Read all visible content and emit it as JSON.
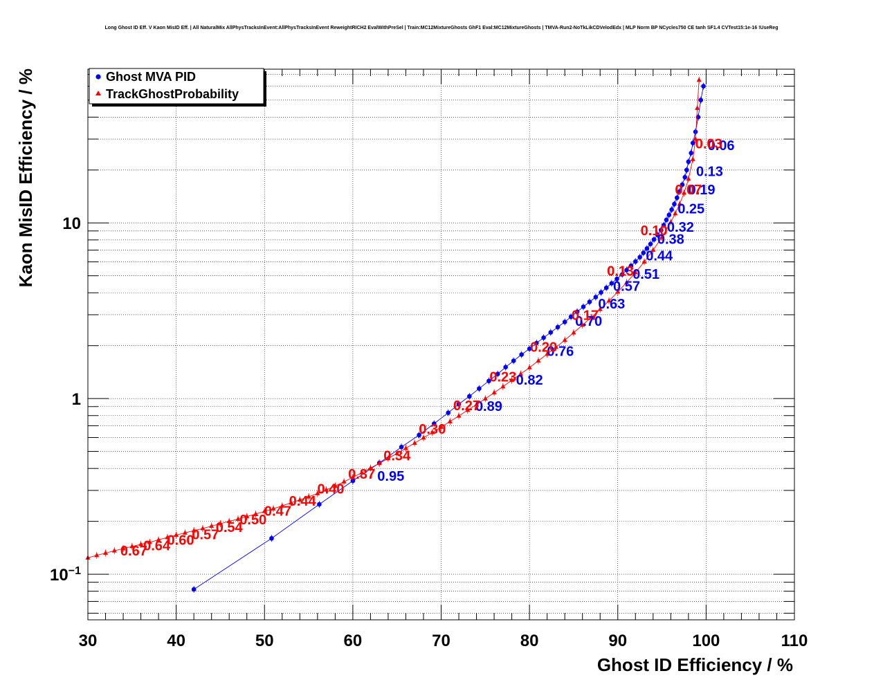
{
  "chart_data": {
    "type": "scatter",
    "title": "Long Ghost ID Eff. V Kaon MisID Eff. | All NaturalMix AllPhysTracksInEvent:AllPhysTracksInEvent ReweightRICH2 EvalWithPreSel | Train:MC12MixtureGhosts GhF1 Eval:MC12MixtureGhosts | TMVA-Run2-NoTkLikCDVelodEdx | MLP Norm BP NCycles750 CE tanh SF1.4 CVTest15:1e-16 !UseReg",
    "xlabel": "Ghost ID Efficiency / %",
    "ylabel": "Kaon MisID Efficiency / %",
    "xlim": [
      30,
      110
    ],
    "ylim": [
      0.055,
      75
    ],
    "yscale": "log",
    "grid": true,
    "legend_position": "top-left",
    "x_ticks": [
      "30",
      "40",
      "50",
      "60",
      "70",
      "80",
      "90",
      "100",
      "110"
    ],
    "y_ticks": [
      {
        "value": 0.1,
        "base": "10",
        "exp": "−1"
      },
      {
        "value": 1,
        "base": "1",
        "exp": ""
      },
      {
        "value": 10,
        "base": "10",
        "exp": ""
      }
    ],
    "series": [
      {
        "name": "Ghost MVA PID",
        "color": "#0000ff",
        "marker": "circle",
        "points": [
          [
            42.0,
            0.082
          ],
          [
            50.8,
            0.16
          ],
          [
            56.2,
            0.25
          ],
          [
            60.0,
            0.34
          ],
          [
            63.0,
            0.43
          ],
          [
            65.5,
            0.53
          ],
          [
            67.5,
            0.62
          ],
          [
            69.2,
            0.72
          ],
          [
            70.8,
            0.83
          ],
          [
            72.0,
            0.93
          ],
          [
            73.2,
            1.03
          ],
          [
            74.3,
            1.14
          ],
          [
            75.4,
            1.26
          ],
          [
            76.4,
            1.38
          ],
          [
            77.3,
            1.51
          ],
          [
            78.2,
            1.64
          ],
          [
            79.1,
            1.78
          ],
          [
            80.0,
            1.92
          ],
          [
            80.8,
            2.07
          ],
          [
            81.6,
            2.22
          ],
          [
            82.4,
            2.38
          ],
          [
            83.2,
            2.55
          ],
          [
            84.0,
            2.73
          ],
          [
            84.7,
            2.92
          ],
          [
            85.4,
            3.12
          ],
          [
            86.1,
            3.33
          ],
          [
            86.8,
            3.55
          ],
          [
            87.5,
            3.78
          ],
          [
            88.1,
            4.02
          ],
          [
            88.7,
            4.27
          ],
          [
            89.3,
            4.53
          ],
          [
            89.9,
            4.8
          ],
          [
            90.5,
            5.09
          ],
          [
            91.0,
            5.39
          ],
          [
            91.5,
            5.7
          ],
          [
            92.0,
            6.03
          ],
          [
            92.5,
            6.38
          ],
          [
            92.9,
            6.75
          ],
          [
            93.3,
            7.15
          ],
          [
            93.7,
            7.58
          ],
          [
            94.1,
            8.05
          ],
          [
            94.5,
            8.55
          ],
          [
            94.9,
            9.1
          ],
          [
            95.2,
            9.7
          ],
          [
            95.5,
            10.4
          ],
          [
            95.8,
            11.1
          ],
          [
            96.1,
            11.9
          ],
          [
            96.4,
            12.8
          ],
          [
            96.7,
            13.9
          ],
          [
            97.0,
            15.1
          ],
          [
            97.3,
            16.5
          ],
          [
            97.6,
            18.2
          ],
          [
            97.8,
            20.0
          ],
          [
            98.0,
            22.3
          ],
          [
            98.3,
            25.0
          ],
          [
            98.5,
            28.5
          ],
          [
            98.8,
            33.0
          ],
          [
            99.1,
            40.0
          ],
          [
            99.4,
            50.0
          ],
          [
            99.7,
            60.0
          ]
        ]
      },
      {
        "name": "TrackGhostProbability",
        "color": "#ff0000",
        "marker": "triangle",
        "points": [
          [
            30.0,
            0.124
          ],
          [
            31.0,
            0.128
          ],
          [
            32.0,
            0.132
          ],
          [
            33.0,
            0.136
          ],
          [
            34.0,
            0.14
          ],
          [
            35.0,
            0.144
          ],
          [
            36.0,
            0.148
          ],
          [
            37.0,
            0.152
          ],
          [
            38.0,
            0.157
          ],
          [
            39.0,
            0.162
          ],
          [
            40.0,
            0.167
          ],
          [
            41.0,
            0.172
          ],
          [
            42.0,
            0.177
          ],
          [
            43.0,
            0.182
          ],
          [
            44.0,
            0.188
          ],
          [
            45.0,
            0.194
          ],
          [
            46.0,
            0.2
          ],
          [
            47.0,
            0.206
          ],
          [
            48.0,
            0.213
          ],
          [
            49.0,
            0.22
          ],
          [
            50.0,
            0.228
          ],
          [
            51.0,
            0.236
          ],
          [
            52.0,
            0.245
          ],
          [
            53.0,
            0.255
          ],
          [
            54.0,
            0.265
          ],
          [
            55.0,
            0.276
          ],
          [
            56.0,
            0.288
          ],
          [
            57.0,
            0.302
          ],
          [
            58.0,
            0.318
          ],
          [
            59.0,
            0.336
          ],
          [
            60.0,
            0.356
          ],
          [
            61.0,
            0.378
          ],
          [
            62.0,
            0.402
          ],
          [
            63.0,
            0.428
          ],
          [
            64.0,
            0.456
          ],
          [
            65.0,
            0.487
          ],
          [
            66.0,
            0.521
          ],
          [
            67.0,
            0.558
          ],
          [
            68.0,
            0.598
          ],
          [
            69.0,
            0.641
          ],
          [
            70.0,
            0.688
          ],
          [
            71.0,
            0.74
          ],
          [
            72.0,
            0.796
          ],
          [
            73.0,
            0.858
          ],
          [
            74.0,
            0.925
          ],
          [
            75.0,
            0.998
          ],
          [
            76.0,
            1.08
          ],
          [
            77.0,
            1.17
          ],
          [
            78.0,
            1.27
          ],
          [
            79.0,
            1.38
          ],
          [
            80.0,
            1.5
          ],
          [
            81.0,
            1.64
          ],
          [
            82.0,
            1.79
          ],
          [
            83.0,
            1.96
          ],
          [
            84.0,
            2.15
          ],
          [
            85.0,
            2.37
          ],
          [
            86.0,
            2.62
          ],
          [
            87.0,
            2.9
          ],
          [
            88.0,
            3.22
          ],
          [
            89.0,
            3.6
          ],
          [
            90.0,
            4.05
          ],
          [
            91.0,
            4.58
          ],
          [
            92.0,
            5.22
          ],
          [
            93.0,
            6.0
          ],
          [
            94.0,
            7.0
          ],
          [
            95.0,
            8.3
          ],
          [
            96.0,
            10.1
          ],
          [
            96.5,
            11.3
          ],
          [
            97.0,
            12.8
          ],
          [
            97.5,
            14.8
          ],
          [
            98.0,
            17.8
          ],
          [
            98.5,
            23.0
          ],
          [
            98.8,
            30.0
          ],
          [
            99.0,
            45.0
          ],
          [
            99.2,
            65.0
          ]
        ]
      }
    ],
    "cut_labels": [
      {
        "series": "Ghost MVA PID",
        "color": "#0000ff",
        "text": "0.95",
        "x": 64.3,
        "y": 0.34
      },
      {
        "series": "Ghost MVA PID",
        "color": "#0000ff",
        "text": "0.89",
        "x": 75.4,
        "y": 0.85
      },
      {
        "series": "Ghost MVA PID",
        "color": "#0000ff",
        "text": "0.82",
        "x": 80.0,
        "y": 1.2
      },
      {
        "series": "Ghost MVA PID",
        "color": "#0000ff",
        "text": "0.76",
        "x": 83.5,
        "y": 1.75
      },
      {
        "series": "Ghost MVA PID",
        "color": "#0000ff",
        "text": "0.70",
        "x": 86.7,
        "y": 2.6
      },
      {
        "series": "Ghost MVA PID",
        "color": "#0000ff",
        "text": "0.63",
        "x": 89.3,
        "y": 3.25
      },
      {
        "series": "Ghost MVA PID",
        "color": "#0000ff",
        "text": "0.57",
        "x": 91.0,
        "y": 4.1
      },
      {
        "series": "Ghost MVA PID",
        "color": "#0000ff",
        "text": "0.51",
        "x": 93.2,
        "y": 4.8
      },
      {
        "series": "Ghost MVA PID",
        "color": "#0000ff",
        "text": "0.44",
        "x": 94.7,
        "y": 6.1
      },
      {
        "series": "Ghost MVA PID",
        "color": "#0000ff",
        "text": "0.38",
        "x": 96.0,
        "y": 7.6
      },
      {
        "series": "Ghost MVA PID",
        "color": "#0000ff",
        "text": "0.32",
        "x": 97.1,
        "y": 8.9
      },
      {
        "series": "Ghost MVA PID",
        "color": "#0000ff",
        "text": "0.25",
        "x": 98.3,
        "y": 11.3
      },
      {
        "series": "Ghost MVA PID",
        "color": "#0000ff",
        "text": "0.19",
        "x": 99.5,
        "y": 14.5
      },
      {
        "series": "Ghost MVA PID",
        "color": "#0000ff",
        "text": "0.13",
        "x": 100.4,
        "y": 18.5
      },
      {
        "series": "Ghost MVA PID",
        "color": "#0000ff",
        "text": "0.06",
        "x": 101.7,
        "y": 26.0
      },
      {
        "series": "TrackGhostProbability",
        "color": "#ff0000",
        "text": "0.03",
        "x": 100.3,
        "y": 26.5
      },
      {
        "series": "TrackGhostProbability",
        "color": "#ff0000",
        "text": "0.07",
        "x": 98.0,
        "y": 14.5
      },
      {
        "series": "TrackGhostProbability",
        "color": "#ff0000",
        "text": "0.10",
        "x": 94.1,
        "y": 8.5
      },
      {
        "series": "TrackGhostProbability",
        "color": "#ff0000",
        "text": "0.13",
        "x": 90.3,
        "y": 5.0
      },
      {
        "series": "TrackGhostProbability",
        "color": "#ff0000",
        "text": "0.17",
        "x": 86.3,
        "y": 2.8
      },
      {
        "series": "TrackGhostProbability",
        "color": "#ff0000",
        "text": "0.20",
        "x": 81.6,
        "y": 1.85
      },
      {
        "series": "TrackGhostProbability",
        "color": "#ff0000",
        "text": "0.23",
        "x": 77.0,
        "y": 1.25
      },
      {
        "series": "TrackGhostProbability",
        "color": "#ff0000",
        "text": "0.27",
        "x": 72.9,
        "y": 0.86
      },
      {
        "series": "TrackGhostProbability",
        "color": "#ff0000",
        "text": "0.30",
        "x": 69.0,
        "y": 0.63
      },
      {
        "series": "TrackGhostProbability",
        "color": "#ff0000",
        "text": "0.34",
        "x": 65.0,
        "y": 0.445
      },
      {
        "series": "TrackGhostProbability",
        "color": "#ff0000",
        "text": "0.37",
        "x": 61.0,
        "y": 0.35
      },
      {
        "series": "TrackGhostProbability",
        "color": "#ff0000",
        "text": "0.40",
        "x": 57.5,
        "y": 0.288
      },
      {
        "series": "TrackGhostProbability",
        "color": "#ff0000",
        "text": "0.44",
        "x": 54.3,
        "y": 0.245
      },
      {
        "series": "TrackGhostProbability",
        "color": "#ff0000",
        "text": "0.47",
        "x": 51.5,
        "y": 0.215
      },
      {
        "series": "TrackGhostProbability",
        "color": "#ff0000",
        "text": "0.50",
        "x": 48.7,
        "y": 0.192
      },
      {
        "series": "TrackGhostProbability",
        "color": "#ff0000",
        "text": "0.54",
        "x": 46.0,
        "y": 0.174
      },
      {
        "series": "TrackGhostProbability",
        "color": "#ff0000",
        "text": "0.57",
        "x": 43.3,
        "y": 0.158
      },
      {
        "series": "TrackGhostProbability",
        "color": "#ff0000",
        "text": "0.60",
        "x": 40.5,
        "y": 0.147
      },
      {
        "series": "TrackGhostProbability",
        "color": "#ff0000",
        "text": "0.64",
        "x": 37.8,
        "y": 0.137
      },
      {
        "series": "TrackGhostProbability",
        "color": "#ff0000",
        "text": "0.67",
        "x": 35.2,
        "y": 0.128
      }
    ]
  }
}
